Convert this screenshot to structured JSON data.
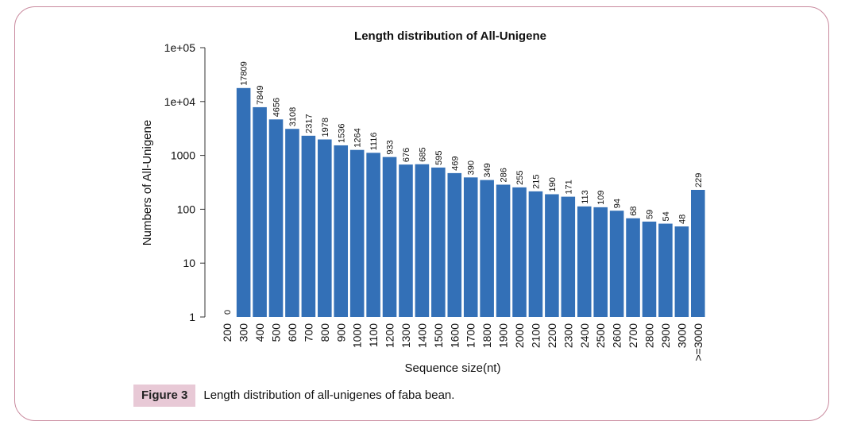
{
  "chart_data": {
    "type": "bar",
    "title": "Length distribution of All-Unigene",
    "xlabel": "Sequence size(nt)",
    "ylabel": "Numbers of All-Unigene",
    "yscale": "log",
    "ylim": [
      1,
      100000
    ],
    "yticks": [
      {
        "value": 1,
        "label": "1"
      },
      {
        "value": 10,
        "label": "10"
      },
      {
        "value": 100,
        "label": "100"
      },
      {
        "value": 1000,
        "label": "1000"
      },
      {
        "value": 10000,
        "label": "1e+04"
      },
      {
        "value": 100000,
        "label": "1e+05"
      }
    ],
    "categories": [
      "200",
      "300",
      "400",
      "500",
      "600",
      "700",
      "800",
      "900",
      "1000",
      "1100",
      "1200",
      "1300",
      "1400",
      "1500",
      "1600",
      "1700",
      "1800",
      "1900",
      "2000",
      "2100",
      "2200",
      "2300",
      "2400",
      "2500",
      "2600",
      "2700",
      "2800",
      "2900",
      "3000",
      ">=3000"
    ],
    "values": [
      0,
      17809,
      7849,
      4656,
      3108,
      2317,
      1978,
      1536,
      1264,
      1116,
      933,
      676,
      685,
      595,
      469,
      390,
      349,
      286,
      255,
      215,
      190,
      171,
      113,
      109,
      94,
      68,
      59,
      54,
      48,
      229
    ],
    "bar_color": "#3370b7"
  },
  "caption": {
    "label": "Figure 3",
    "text": "Length distribution of all-unigenes of faba bean."
  }
}
